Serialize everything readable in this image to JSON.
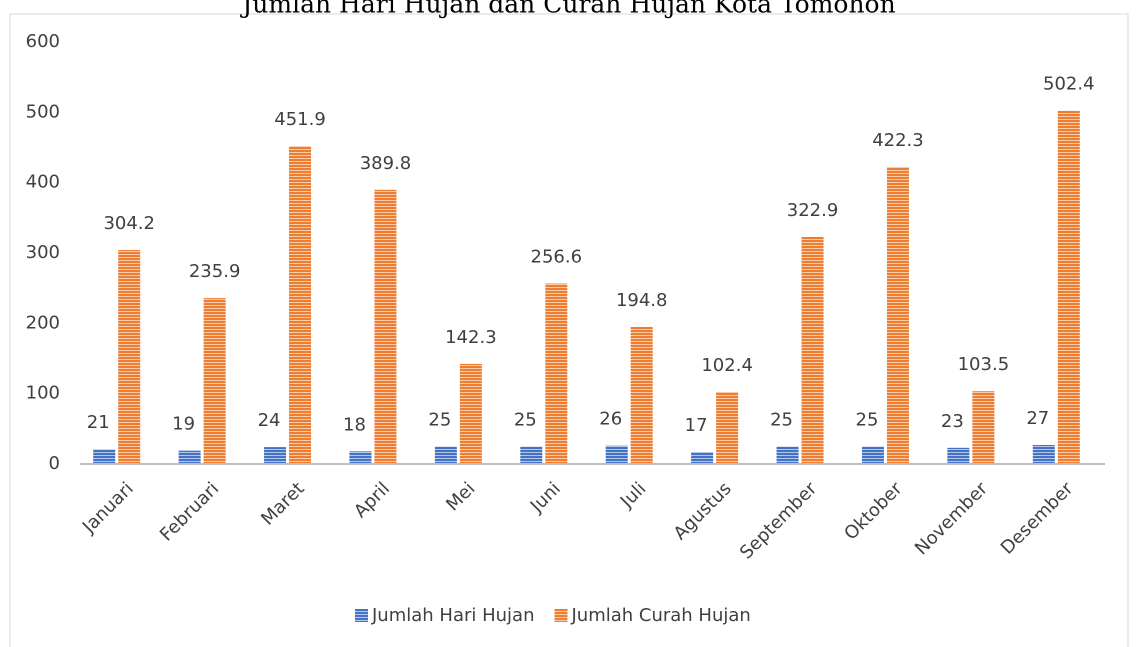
{
  "chart_data": {
    "type": "bar",
    "title": "Jumlah Hari Hujan dan Curah Hujan Kota Tomohon",
    "categories": [
      "Januari",
      "Februari",
      "Maret",
      "April",
      "Mei",
      "Juni",
      "Juli",
      "Agustus",
      "September",
      "Oktober",
      "November",
      "Desember"
    ],
    "series": [
      {
        "name": "Jumlah Hari Hujan",
        "color": "#4472c4",
        "values": [
          21,
          19,
          24,
          18,
          25,
          25,
          26,
          17,
          25,
          25,
          23,
          27
        ]
      },
      {
        "name": "Jumlah Curah Hujan",
        "color": "#ed7d31",
        "values": [
          304.2,
          235.9,
          451.9,
          389.8,
          142.3,
          256.6,
          194.8,
          102.4,
          322.9,
          422.3,
          103.5,
          502.4
        ]
      }
    ],
    "ylim": [
      0,
      600
    ],
    "yticks": [
      0,
      100,
      200,
      300,
      400,
      500,
      600
    ],
    "grid": false,
    "legend": "bottom"
  }
}
